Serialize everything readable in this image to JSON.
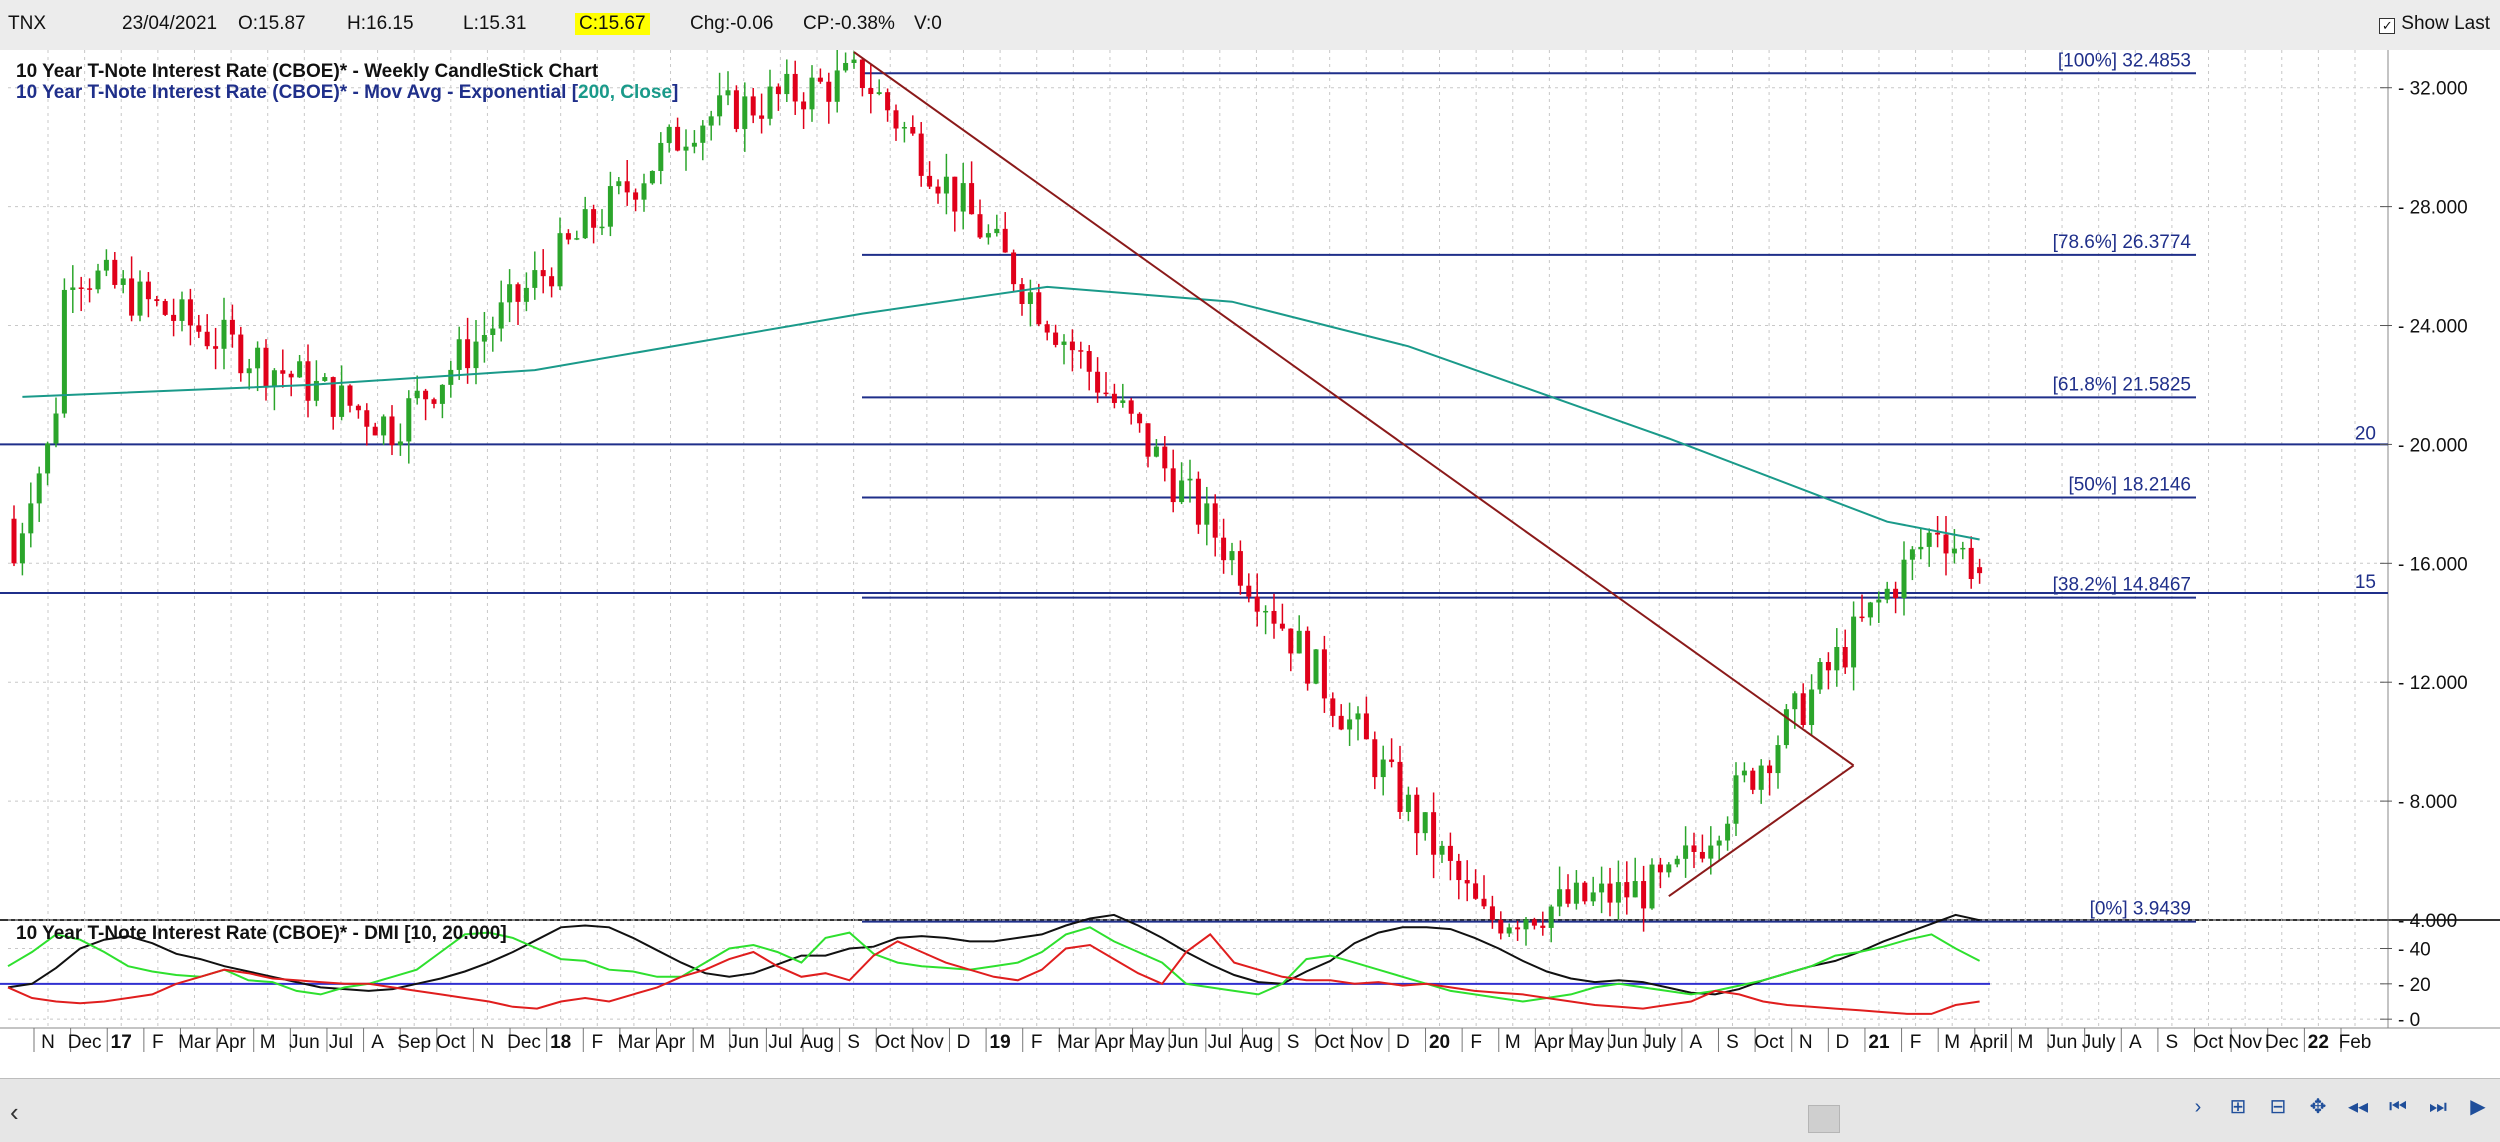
{
  "topbar": {
    "symbol": "TNX",
    "date": "23/04/2021",
    "open": "O:15.87",
    "high": "H:16.15",
    "low": "L:15.31",
    "close": "C:15.67",
    "change": "Chg:-0.06",
    "change_pct": "CP:-0.38%",
    "volume": "V:0",
    "show_last_label": "Show Last",
    "show_last_checked": true
  },
  "colors": {
    "up_candle": "#2ba52b",
    "down_candle": "#e0001a",
    "ema": "#1a9a8a",
    "fib_line": "#1f2f8a",
    "trendline": "#8b1a1a",
    "dmi_adx": "#111111",
    "dmi_plus": "#2ee02e",
    "dmi_minus": "#e01e1e",
    "dmi_threshold": "#3030d0"
  },
  "chart_data": [
    {
      "type": "candlestick",
      "title": "10 Year T-Note Interest Rate (CBOE)* - Weekly CandleStick Chart",
      "subtitle_prefix": "10 Year T-Note Interest Rate (CBOE)* - Mov Avg - Exponential [",
      "subtitle_params": "200, Close",
      "subtitle_suffix": "]",
      "ylim": [
        4,
        33
      ],
      "y_ticks": [
        "32.000",
        "28.000",
        "24.000",
        "20.000",
        "16.000",
        "12.000",
        "8.000",
        "4.000"
      ],
      "grid": true,
      "horizontal_lines": [
        {
          "value": 20,
          "label": "20"
        },
        {
          "value": 15,
          "label": "15"
        }
      ],
      "fibonacci": [
        {
          "pct": "[100%]",
          "value": 32.4853,
          "text": "32.4853"
        },
        {
          "pct": "[78.6%]",
          "value": 26.3774,
          "text": "26.3774"
        },
        {
          "pct": "[61.8%]",
          "value": 21.5825,
          "text": "21.5825"
        },
        {
          "pct": "[50%]",
          "value": 18.2146,
          "text": "18.2146"
        },
        {
          "pct": "[38.2%]",
          "value": 14.8467,
          "text": "14.8467"
        },
        {
          "pct": "[0%]",
          "value": 3.9439,
          "text": "3.9439"
        }
      ],
      "x_axis_labels": [
        {
          "label": "N"
        },
        {
          "label": "Dec"
        },
        {
          "label": "17",
          "bold": true
        },
        {
          "label": "F"
        },
        {
          "label": "Mar"
        },
        {
          "label": "Apr"
        },
        {
          "label": "M"
        },
        {
          "label": "Jun"
        },
        {
          "label": "Jul"
        },
        {
          "label": "A"
        },
        {
          "label": "Sep"
        },
        {
          "label": "Oct"
        },
        {
          "label": "N"
        },
        {
          "label": "Dec"
        },
        {
          "label": "18",
          "bold": true
        },
        {
          "label": "F"
        },
        {
          "label": "Mar"
        },
        {
          "label": "Apr"
        },
        {
          "label": "M"
        },
        {
          "label": "Jun"
        },
        {
          "label": "Jul"
        },
        {
          "label": "Aug"
        },
        {
          "label": "S"
        },
        {
          "label": "Oct"
        },
        {
          "label": "Nov"
        },
        {
          "label": "D"
        },
        {
          "label": "19",
          "bold": true
        },
        {
          "label": "F"
        },
        {
          "label": "Mar"
        },
        {
          "label": "Apr"
        },
        {
          "label": "May"
        },
        {
          "label": "Jun"
        },
        {
          "label": "Jul"
        },
        {
          "label": "Aug"
        },
        {
          "label": "S"
        },
        {
          "label": "Oct"
        },
        {
          "label": "Nov"
        },
        {
          "label": "D"
        },
        {
          "label": "20",
          "bold": true
        },
        {
          "label": "F"
        },
        {
          "label": "M"
        },
        {
          "label": "Apr"
        },
        {
          "label": "May"
        },
        {
          "label": "Jun"
        },
        {
          "label": "July"
        },
        {
          "label": "A"
        },
        {
          "label": "S"
        },
        {
          "label": "Oct"
        },
        {
          "label": "N"
        },
        {
          "label": "D"
        },
        {
          "label": "21",
          "bold": true
        },
        {
          "label": "F"
        },
        {
          "label": "M"
        },
        {
          "label": "April"
        },
        {
          "label": "M"
        },
        {
          "label": "Jun"
        },
        {
          "label": "July"
        },
        {
          "label": "A"
        },
        {
          "label": "S"
        },
        {
          "label": "Oct"
        },
        {
          "label": "Nov"
        },
        {
          "label": "Dec"
        },
        {
          "label": "22",
          "bold": true
        },
        {
          "label": "Feb"
        }
      ],
      "key_points": [
        {
          "date": "2016-11-11",
          "close": 21.5
        },
        {
          "date": "2016-12-16",
          "close": 26.0
        },
        {
          "date": "2017-09-08",
          "close": 20.6
        },
        {
          "date": "2018-05-18",
          "close": 30.9
        },
        {
          "date": "2018-10-05",
          "close": 32.4
        },
        {
          "date": "2019-09-06",
          "close": 14.8
        },
        {
          "date": "2020-03-06",
          "close": 4.0
        },
        {
          "date": "2020-08-07",
          "close": 5.2
        },
        {
          "date": "2021-03-19",
          "close": 17.3
        },
        {
          "date": "2021-04-23",
          "close": 15.67
        }
      ],
      "ema_points": [
        {
          "date": "2016-11-04",
          "value": 21.6
        },
        {
          "date": "2017-06-30",
          "value": 22.0
        },
        {
          "date": "2018-01-05",
          "value": 22.5
        },
        {
          "date": "2018-10-05",
          "value": 24.4
        },
        {
          "date": "2019-03-08",
          "value": 25.3
        },
        {
          "date": "2019-08-09",
          "value": 24.8
        },
        {
          "date": "2020-01-03",
          "value": 23.3
        },
        {
          "date": "2020-08-07",
          "value": 20.2
        },
        {
          "date": "2021-02-05",
          "value": 17.4
        },
        {
          "date": "2021-04-23",
          "value": 16.8
        }
      ],
      "trendlines": [
        {
          "from": {
            "date": "2018-09-28",
            "value": 33.2
          },
          "to": {
            "date": "2021-01-08",
            "value": 9.2
          }
        },
        {
          "from": {
            "date": "2020-08-07",
            "value": 4.8
          },
          "to": {
            "date": "2021-01-08",
            "value": 9.2
          }
        }
      ]
    },
    {
      "type": "line",
      "title": "10 Year T-Note Interest Rate (CBOE)* - DMI [10, 20.000]",
      "ylim": [
        -5,
        55
      ],
      "y_ticks": [
        "40",
        "20",
        "0"
      ],
      "threshold": 20,
      "series": [
        {
          "key": "adx",
          "values": [
            18,
            20,
            29,
            40,
            45,
            47,
            43,
            37,
            34,
            30,
            27,
            24,
            21,
            18,
            17,
            16,
            17,
            20,
            23,
            27,
            32,
            38,
            45,
            52,
            53,
            52,
            46,
            39,
            32,
            26,
            24,
            26,
            31,
            36,
            36,
            40,
            41,
            46,
            47,
            46,
            44,
            44,
            46,
            48,
            53,
            57,
            59,
            53,
            46,
            38,
            31,
            25,
            21,
            20,
            27,
            33,
            43,
            49,
            52,
            52,
            51,
            46,
            40,
            33,
            27,
            23,
            21,
            22,
            21,
            18,
            15,
            14,
            17,
            22,
            26,
            30,
            33,
            38,
            44,
            49,
            54,
            59,
            56
          ]
        },
        {
          "key": "plus_di",
          "values": [
            30,
            38,
            48,
            45,
            38,
            30,
            27,
            25,
            24,
            28,
            22,
            21,
            16,
            14,
            18,
            20,
            24,
            28,
            38,
            48,
            49,
            46,
            40,
            34,
            33,
            28,
            27,
            24,
            24,
            32,
            40,
            42,
            38,
            32,
            46,
            49,
            37,
            32,
            30,
            29,
            28,
            30,
            32,
            38,
            48,
            52,
            44,
            38,
            32,
            20,
            18,
            16,
            14,
            20,
            34,
            36,
            32,
            28,
            24,
            20,
            16,
            14,
            12,
            10,
            12,
            14,
            18,
            20,
            18,
            16,
            14,
            16,
            19,
            22,
            26,
            30,
            36,
            38,
            41,
            45,
            48,
            40,
            33
          ]
        },
        {
          "key": "minus_di",
          "values": [
            18,
            12,
            10,
            9,
            10,
            12,
            14,
            20,
            24,
            28,
            26,
            23,
            22,
            21,
            20,
            20,
            18,
            16,
            14,
            12,
            10,
            7,
            6,
            10,
            12,
            10,
            14,
            18,
            24,
            28,
            34,
            38,
            30,
            24,
            26,
            22,
            36,
            44,
            38,
            32,
            28,
            24,
            22,
            28,
            40,
            42,
            34,
            26,
            20,
            38,
            48,
            32,
            28,
            24,
            22,
            22,
            20,
            21,
            19,
            20,
            18,
            16,
            15,
            14,
            12,
            10,
            8,
            7,
            6,
            8,
            10,
            16,
            14,
            10,
            8,
            7,
            6,
            5,
            4,
            3,
            3,
            8,
            10
          ]
        }
      ]
    }
  ]
}
